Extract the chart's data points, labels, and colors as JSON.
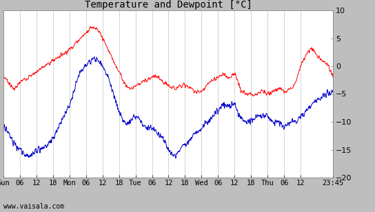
{
  "title": "Temperature and Dewpoint [°C]",
  "ylabel_right_ticks": [
    10,
    5,
    0,
    -5,
    -10,
    -15,
    -20
  ],
  "ylim": [
    -20,
    10
  ],
  "bg_color": "#ffffff",
  "outer_bg": "#bebebe",
  "temp_color": "#ff0000",
  "dew_color": "#0000cc",
  "grid_color": "#c0c0c0",
  "watermark": "www.vaisala.com",
  "xtick_labels": [
    "Sun",
    "06",
    "12",
    "18",
    "Mon",
    "06",
    "12",
    "18",
    "Tue",
    "06",
    "12",
    "18",
    "Wed",
    "06",
    "12",
    "18",
    "Thu",
    "06",
    "12",
    "23:45"
  ],
  "xtick_positions": [
    0,
    6,
    12,
    18,
    24,
    30,
    36,
    42,
    48,
    54,
    60,
    66,
    72,
    78,
    84,
    90,
    96,
    102,
    108,
    119.75
  ],
  "total_hours": 119.75,
  "n_points": 2000,
  "temp_control_t": [
    0,
    2,
    4,
    6,
    9,
    12,
    15,
    18,
    21,
    24,
    26,
    28,
    30,
    32,
    34,
    36,
    38,
    40,
    42,
    44,
    46,
    48,
    50,
    52,
    54,
    56,
    58,
    60,
    62,
    64,
    66,
    68,
    70,
    72,
    74,
    76,
    78,
    80,
    82,
    84,
    86,
    88,
    90,
    92,
    94,
    96,
    98,
    100,
    102,
    104,
    106,
    108,
    110,
    112,
    114,
    116,
    118,
    119.75
  ],
  "temp_control_v": [
    -2,
    -3,
    -4,
    -3,
    -2,
    -1,
    0,
    1,
    2,
    3,
    4,
    5,
    6,
    7,
    6.5,
    5,
    3,
    1,
    -1,
    -3,
    -4,
    -3.5,
    -3,
    -2.5,
    -2,
    -2,
    -3,
    -3.5,
    -4,
    -3.5,
    -3.5,
    -4,
    -4.5,
    -4.5,
    -3.5,
    -2.5,
    -2,
    -1.5,
    -2,
    -1.5,
    -4,
    -5,
    -5,
    -5,
    -4.5,
    -5,
    -4.5,
    -4,
    -4.5,
    -4,
    -3,
    0,
    2,
    3,
    2,
    1,
    0,
    -2
  ],
  "dew_control_t": [
    0,
    2,
    4,
    6,
    8,
    10,
    12,
    14,
    16,
    18,
    20,
    22,
    24,
    26,
    28,
    30,
    32,
    34,
    36,
    38,
    40,
    42,
    44,
    46,
    48,
    50,
    52,
    54,
    56,
    58,
    60,
    62,
    64,
    66,
    68,
    70,
    72,
    74,
    76,
    78,
    80,
    82,
    84,
    86,
    88,
    90,
    92,
    94,
    96,
    98,
    100,
    102,
    104,
    106,
    108,
    110,
    112,
    114,
    116,
    118,
    119.75
  ],
  "dew_control_v": [
    -11,
    -12,
    -14,
    -15,
    -16,
    -16,
    -15,
    -15,
    -14,
    -13,
    -11,
    -9,
    -7,
    -4,
    -1,
    0,
    1,
    1,
    0,
    -2,
    -5,
    -8,
    -10,
    -10,
    -9,
    -10,
    -11,
    -11,
    -12,
    -13,
    -15,
    -16,
    -15,
    -14,
    -13,
    -12,
    -11,
    -10,
    -9,
    -8,
    -7,
    -7,
    -7,
    -9,
    -10,
    -10,
    -9,
    -9,
    -9,
    -10,
    -10,
    -11,
    -10,
    -10,
    -9,
    -8,
    -7,
    -6,
    -5.5,
    -5,
    -5
  ],
  "temp_noise_sigma": 1.5,
  "temp_noise_scale": 0.4,
  "dew_noise_sigma": 1.2,
  "dew_noise_scale": 0.5
}
